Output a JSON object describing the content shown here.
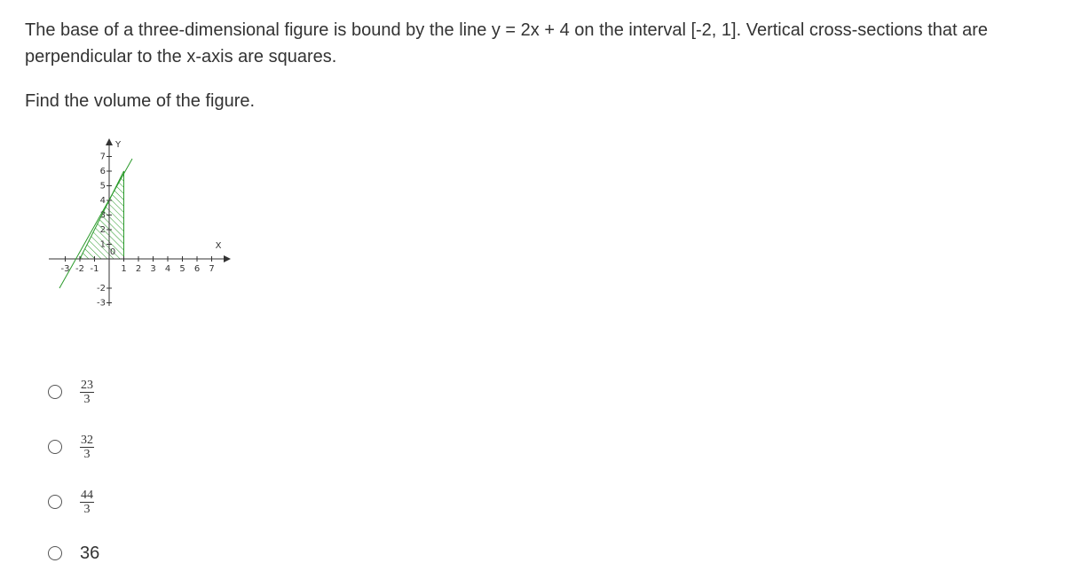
{
  "question": {
    "lines": [
      "The base of a three-dimensional figure is bound by the line y = 2x + 4 on the interval [-2, 1]. Vertical cross-sections that are",
      "perpendicular to the x-axis are squares."
    ],
    "prompt": "Find the volume of the figure."
  },
  "figure": {
    "x_label": "X",
    "y_label": "Y",
    "xticks": [
      -3,
      -2,
      -1,
      0,
      1,
      2,
      3,
      4,
      5,
      6,
      7
    ],
    "yticks": [
      7,
      6,
      5,
      4,
      3,
      2,
      1,
      -2,
      -3
    ]
  },
  "options": [
    {
      "numerator": "23",
      "denominator": "3"
    },
    {
      "numerator": "32",
      "denominator": "3"
    },
    {
      "numerator": "44",
      "denominator": "3"
    },
    {
      "text": "36"
    }
  ]
}
